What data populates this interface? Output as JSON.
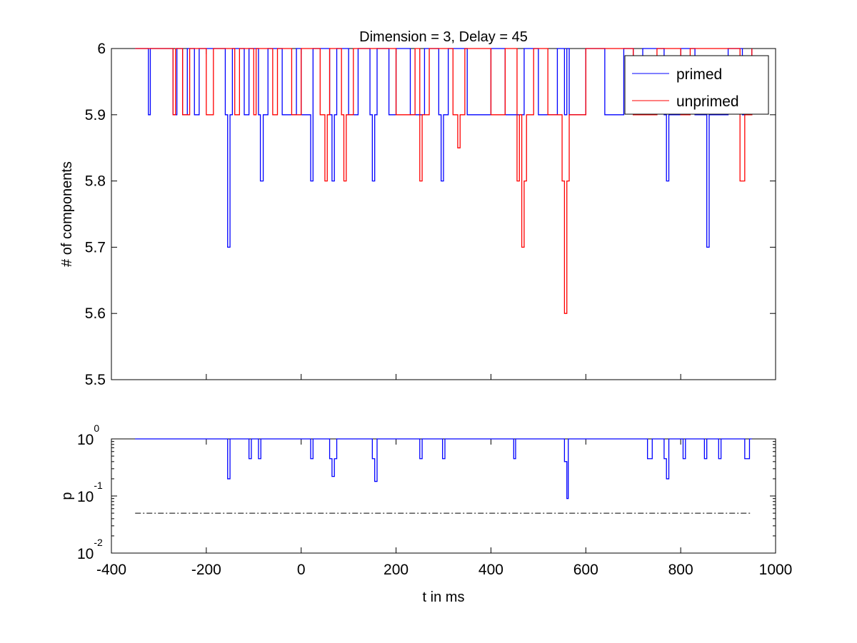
{
  "chart_data": [
    {
      "type": "line",
      "drawstyle": "steps-post",
      "title": "Dimension  = 3, Delay = 45",
      "ylabel": "# of components",
      "xlim": [
        -400,
        1000
      ],
      "xticks": [
        -400,
        -200,
        0,
        200,
        400,
        600,
        800,
        1000
      ],
      "ylim": [
        5.5,
        6
      ],
      "yticks": [
        5.5,
        5.6,
        5.7,
        5.8,
        5.9,
        6
      ],
      "legend": "upper right",
      "series": [
        {
          "name": "primed",
          "color": "#0000ff",
          "x": [
            -350,
            -322,
            -318,
            -270,
            -262,
            -250,
            -240,
            -225,
            -215,
            -160,
            -155,
            -150,
            -145,
            -120,
            -110,
            -90,
            -86,
            -80,
            -70,
            -40,
            -10,
            0,
            15,
            20,
            25,
            60,
            65,
            70,
            75,
            100,
            120,
            145,
            150,
            155,
            160,
            185,
            200,
            230,
            260,
            290,
            295,
            300,
            310,
            350,
            400,
            430,
            470,
            500,
            540,
            555,
            560,
            565,
            600,
            640,
            680,
            700,
            720,
            765,
            770,
            775,
            800,
            830,
            850,
            855,
            860,
            900,
            930,
            950
          ],
          "values": [
            6,
            5.9,
            6,
            5.9,
            6,
            5.9,
            6,
            5.9,
            6,
            5.9,
            5.7,
            5.9,
            6,
            5.9,
            6,
            5.9,
            5.8,
            5.9,
            6,
            5.9,
            6,
            5.9,
            5.9,
            5.8,
            6,
            5.9,
            5.8,
            5.9,
            6,
            5.9,
            6,
            5.9,
            5.8,
            5.9,
            6,
            5.9,
            6,
            5.9,
            6,
            5.9,
            5.8,
            5.9,
            6,
            5.9,
            6,
            5.9,
            6,
            5.9,
            6,
            5.9,
            6,
            5.9,
            6,
            5.9,
            6,
            5.9,
            6,
            5.9,
            5.8,
            5.9,
            6,
            5.9,
            5.9,
            5.7,
            5.9,
            6,
            5.9,
            6
          ]
        },
        {
          "name": "unprimed",
          "color": "#ff0000",
          "x": [
            -350,
            -270,
            -265,
            -250,
            -235,
            -200,
            -185,
            -140,
            -130,
            -100,
            -95,
            -60,
            -50,
            -20,
            0,
            40,
            50,
            55,
            60,
            85,
            90,
            95,
            110,
            200,
            240,
            250,
            255,
            270,
            320,
            330,
            335,
            345,
            400,
            430,
            455,
            460,
            465,
            470,
            475,
            490,
            520,
            550,
            555,
            560,
            565,
            600,
            700,
            750,
            800,
            820,
            925,
            935,
            950
          ],
          "values": [
            6,
            5.9,
            6,
            5.9,
            6,
            5.9,
            6,
            5.9,
            6,
            5.9,
            6,
            5.9,
            6,
            5.9,
            6,
            5.9,
            5.8,
            5.9,
            6,
            5.9,
            5.8,
            5.9,
            6,
            5.9,
            6,
            5.8,
            5.9,
            6,
            5.9,
            5.85,
            5.9,
            6,
            5.9,
            6,
            5.8,
            5.9,
            5.7,
            5.8,
            5.9,
            6,
            5.9,
            5.8,
            5.6,
            5.8,
            5.9,
            6,
            5.9,
            6,
            5.9,
            6,
            5.8,
            5.9,
            6
          ]
        }
      ]
    },
    {
      "type": "line",
      "drawstyle": "steps-post",
      "ylabel": "p",
      "xlabel": "t in ms",
      "log_y": true,
      "xlim": [
        -400,
        1000
      ],
      "xticks": [
        -400,
        -200,
        0,
        200,
        400,
        600,
        800,
        1000
      ],
      "ylim": [
        0.01,
        1
      ],
      "yticks": [
        {
          "value": 0.01,
          "label": "10",
          "exponent": "-2"
        },
        {
          "value": 0.1,
          "label": "10",
          "exponent": "-1"
        },
        {
          "value": 1,
          "label": "10",
          "exponent": "0"
        }
      ],
      "reference_line": {
        "y": 0.05,
        "x": [
          -350,
          950
        ]
      },
      "series": [
        {
          "color": "#0000ff",
          "x": [
            -350,
            -155,
            -150,
            -110,
            -105,
            -90,
            -85,
            20,
            25,
            60,
            65,
            70,
            75,
            150,
            155,
            160,
            250,
            255,
            298,
            303,
            448,
            452,
            555,
            560,
            563,
            730,
            740,
            765,
            770,
            775,
            805,
            810,
            850,
            855,
            880,
            885,
            935,
            945,
            950
          ],
          "values": [
            1,
            0.2,
            1,
            0.45,
            1,
            0.45,
            1,
            0.45,
            1,
            0.45,
            0.22,
            0.45,
            1,
            0.45,
            0.18,
            1,
            0.45,
            1,
            0.45,
            1,
            0.45,
            1,
            0.4,
            0.09,
            1,
            0.45,
            1,
            0.45,
            0.2,
            1,
            0.45,
            1,
            0.45,
            1,
            0.45,
            1,
            0.45,
            1,
            1
          ]
        }
      ]
    }
  ]
}
